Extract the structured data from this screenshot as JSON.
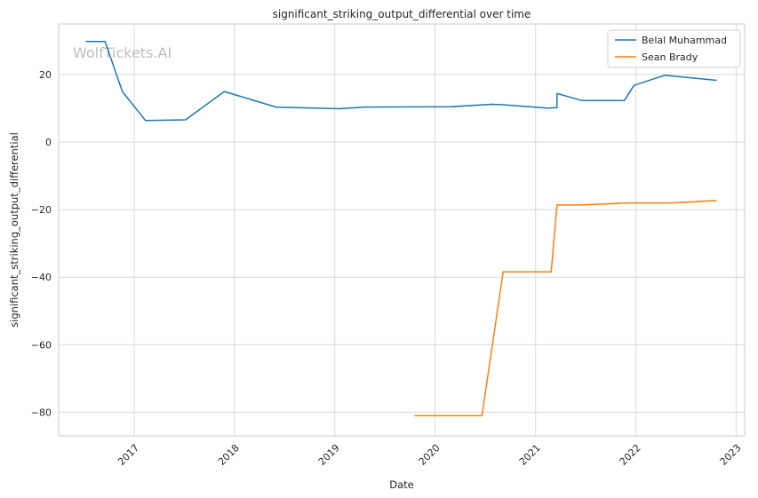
{
  "chart_data": {
    "type": "line",
    "title": "significant_striking_output_differential over time",
    "xlabel": "Date",
    "ylabel": "significant_striking_output_differential",
    "watermark": "WolfTickets.AI",
    "xlim": [
      "2016-04-01",
      "2023-02-01"
    ],
    "ylim": [
      -87,
      35
    ],
    "x_ticks": [
      "2017-01-01",
      "2018-01-01",
      "2019-01-01",
      "2020-01-01",
      "2021-01-01",
      "2022-01-01",
      "2023-01-01"
    ],
    "x_tick_labels": [
      "2017",
      "2018",
      "2019",
      "2020",
      "2021",
      "2022",
      "2023"
    ],
    "y_ticks": [
      20,
      0,
      -20,
      -40,
      -60,
      -80
    ],
    "y_tick_labels": [
      "20",
      "0",
      "−20",
      "−40",
      "−60",
      "−80"
    ],
    "grid": true,
    "legend_position": "top-right",
    "series": [
      {
        "name": "Belal Muhammad",
        "color": "#1f77b4",
        "points": [
          [
            "2016-07-08",
            29.8
          ],
          [
            "2016-09-17",
            29.8
          ],
          [
            "2016-11-19",
            15.0
          ],
          [
            "2017-02-11",
            6.4
          ],
          [
            "2017-07-07",
            6.6
          ],
          [
            "2017-11-25",
            15.0
          ],
          [
            "2018-06-01",
            10.4
          ],
          [
            "2019-01-18",
            9.9
          ],
          [
            "2019-04-20",
            10.4
          ],
          [
            "2020-02-29",
            10.5
          ],
          [
            "2020-07-25",
            11.2
          ],
          [
            "2020-08-29",
            11.1
          ],
          [
            "2021-02-13",
            10.1
          ],
          [
            "2021-03-20",
            10.2
          ],
          [
            "2021-03-20",
            14.4
          ],
          [
            "2021-06-19",
            12.3
          ],
          [
            "2021-11-20",
            12.3
          ],
          [
            "2021-12-25",
            16.8
          ],
          [
            "2022-04-16",
            19.8
          ],
          [
            "2022-10-22",
            18.3
          ]
        ]
      },
      {
        "name": "Sean Brady",
        "color": "#ff7f0e",
        "points": [
          [
            "2019-10-18",
            -81.0
          ],
          [
            "2020-06-20",
            -81.0
          ],
          [
            "2020-09-05",
            -38.4
          ],
          [
            "2021-02-27",
            -38.4
          ],
          [
            "2021-03-20",
            -18.6
          ],
          [
            "2021-06-12",
            -18.6
          ],
          [
            "2021-12-10",
            -18.0
          ],
          [
            "2022-05-14",
            -18.0
          ],
          [
            "2022-10-22",
            -17.3
          ]
        ]
      }
    ]
  }
}
